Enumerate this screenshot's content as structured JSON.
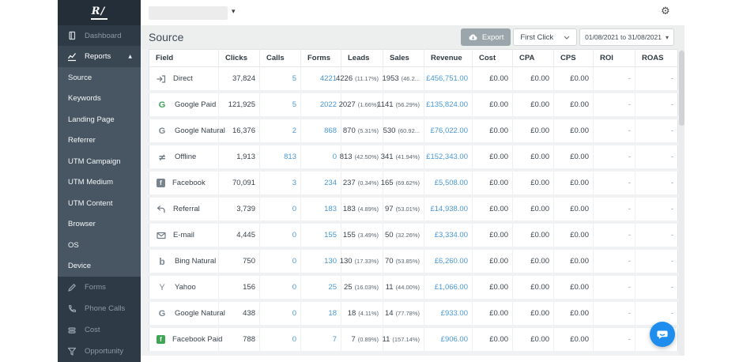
{
  "topbar": {
    "account_value": "",
    "gear_icon": "⚙"
  },
  "sidebar": {
    "logo_text": "R/",
    "dashboard_label": "Dashboard",
    "reports_label": "Reports",
    "report_items": [
      "Source",
      "Keywords",
      "Landing Page",
      "Referrer",
      "UTM Campaign",
      "UTM Medium",
      "UTM Content",
      "Browser",
      "OS",
      "Device"
    ],
    "active_report_item": "Source",
    "bottom_items": [
      {
        "icon": "pencil",
        "label": "Forms"
      },
      {
        "icon": "phone",
        "label": "Phone Calls"
      },
      {
        "icon": "cost",
        "label": "Cost"
      },
      {
        "icon": "funnel",
        "label": "Opportunity"
      }
    ]
  },
  "header": {
    "title": "Source",
    "export_label": "Export",
    "attribution_model": "First Click",
    "date_range": "01/08/2021 to 31/08/2021"
  },
  "table": {
    "columns": [
      "Field",
      "Clicks",
      "Calls",
      "Forms",
      "Leads",
      "Sales",
      "Revenue",
      "Cost",
      "CPA",
      "CPS",
      "ROI",
      "ROAS"
    ],
    "rows": [
      {
        "icon": "signin",
        "field": "Direct",
        "clicks": "37,824",
        "calls": "5",
        "forms": "4221",
        "leads": "4226",
        "leads_pct": "(11.17%)",
        "sales": "1953",
        "sales_pct": "(46.2...",
        "revenue": "£456,751.00",
        "cost": "£0.00",
        "cpa": "£0.00",
        "cps": "£0.00",
        "roi": "-",
        "roas": "-"
      },
      {
        "icon": "google-green",
        "field": "Google Paid",
        "clicks": "121,925",
        "calls": "5",
        "forms": "2022",
        "leads": "2027",
        "leads_pct": "(1.66%)",
        "sales": "1141",
        "sales_pct": "(56.29%)",
        "revenue": "£135,824.00",
        "cost": "£0.00",
        "cpa": "£0.00",
        "cps": "£0.00",
        "roi": "-",
        "roas": "-"
      },
      {
        "icon": "google-gray",
        "field": "Google Natural",
        "clicks": "16,376",
        "calls": "2",
        "forms": "868",
        "leads": "870",
        "leads_pct": "(5.31%)",
        "sales": "530",
        "sales_pct": "(60.92...",
        "revenue": "£76,022.00",
        "cost": "£0.00",
        "cpa": "£0.00",
        "cps": "£0.00",
        "roi": "-",
        "roas": "-"
      },
      {
        "icon": "offline",
        "field": "Offline",
        "clicks": "1,913",
        "calls": "813",
        "forms": "0",
        "leads": "813",
        "leads_pct": "(42.50%)",
        "sales": "341",
        "sales_pct": "(41.94%)",
        "revenue": "£152,343.00",
        "cost": "£0.00",
        "cpa": "£0.00",
        "cps": "£0.00",
        "roi": "-",
        "roas": "-"
      },
      {
        "icon": "facebook-gray",
        "field": "Facebook",
        "clicks": "70,091",
        "calls": "3",
        "forms": "234",
        "leads": "237",
        "leads_pct": "(0.34%)",
        "sales": "165",
        "sales_pct": "(69.62%)",
        "revenue": "£5,508.00",
        "cost": "£0.00",
        "cpa": "£0.00",
        "cps": "£0.00",
        "roi": "-",
        "roas": "-"
      },
      {
        "icon": "reply",
        "field": "Referral",
        "clicks": "3,739",
        "calls": "0",
        "forms": "183",
        "leads": "183",
        "leads_pct": "(4.89%)",
        "sales": "97",
        "sales_pct": "(53.01%)",
        "revenue": "£14,938.00",
        "cost": "£0.00",
        "cpa": "£0.00",
        "cps": "£0.00",
        "roi": "-",
        "roas": "-"
      },
      {
        "icon": "envelope",
        "field": "E-mail",
        "clicks": "4,445",
        "calls": "0",
        "forms": "155",
        "leads": "155",
        "leads_pct": "(3.49%)",
        "sales": "50",
        "sales_pct": "(32.26%)",
        "revenue": "£3,334.00",
        "cost": "£0.00",
        "cpa": "£0.00",
        "cps": "£0.00",
        "roi": "-",
        "roas": "-"
      },
      {
        "icon": "bing",
        "field": "Bing Natural",
        "clicks": "750",
        "calls": "0",
        "forms": "130",
        "leads": "130",
        "leads_pct": "(17.33%)",
        "sales": "70",
        "sales_pct": "(53.85%)",
        "revenue": "£6,260.00",
        "cost": "£0.00",
        "cpa": "£0.00",
        "cps": "£0.00",
        "roi": "-",
        "roas": "-"
      },
      {
        "icon": "yahoo",
        "field": "Yahoo",
        "clicks": "156",
        "calls": "0",
        "forms": "25",
        "leads": "25",
        "leads_pct": "(16.03%)",
        "sales": "11",
        "sales_pct": "(44.00%)",
        "revenue": "£1,066.00",
        "cost": "£0.00",
        "cpa": "£0.00",
        "cps": "£0.00",
        "roi": "-",
        "roas": "-"
      },
      {
        "icon": "google-gray",
        "field": "Google Natural",
        "clicks": "438",
        "calls": "0",
        "forms": "18",
        "leads": "18",
        "leads_pct": "(4.11%)",
        "sales": "14",
        "sales_pct": "(77.78%)",
        "revenue": "£933.00",
        "cost": "£0.00",
        "cpa": "£0.00",
        "cps": "£0.00",
        "roi": "-",
        "roas": "-"
      },
      {
        "icon": "facebook-green",
        "field": "Facebook Paid",
        "clicks": "788",
        "calls": "0",
        "forms": "7",
        "leads": "7",
        "leads_pct": "(0.89%)",
        "sales": "11",
        "sales_pct": "(157.14%)",
        "revenue": "£906.00",
        "cost": "£0.00",
        "cpa": "£0.00",
        "cps": "£0.00",
        "roi": "-",
        "roas": "-"
      }
    ]
  },
  "colors": {
    "accent_blue": "#4a98d3",
    "sidebar_dark": "#2e3b47",
    "brand_green": "#3da554",
    "chat_blue": "#1f8ded"
  }
}
